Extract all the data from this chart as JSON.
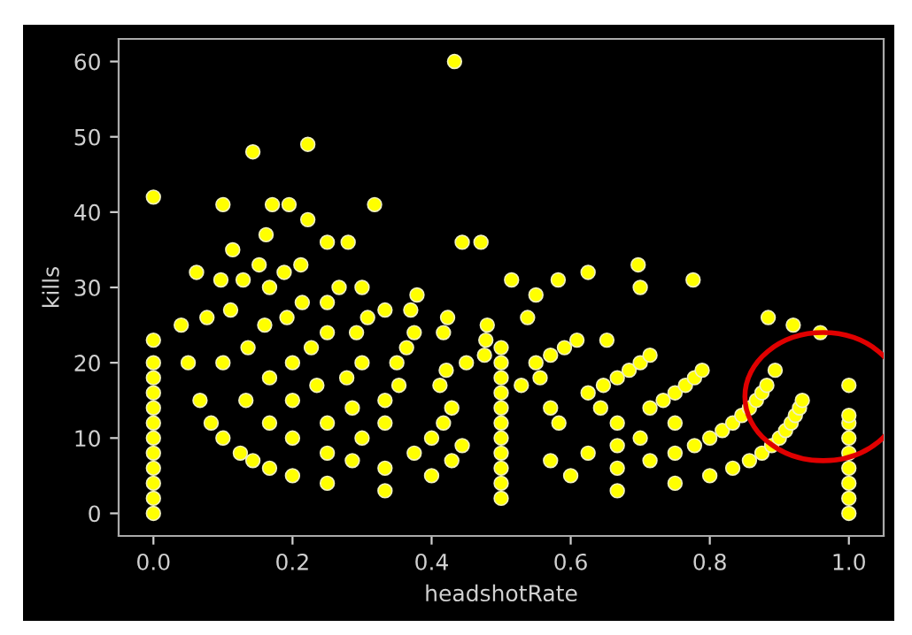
{
  "chart_data": {
    "type": "scatter",
    "xlabel": "headshotRate",
    "ylabel": "kills",
    "xlim": [
      -0.05,
      1.05
    ],
    "ylim": [
      -3,
      63
    ],
    "xticks": [
      {
        "value": 0,
        "label": "0.0"
      },
      0.2,
      0.4,
      0.6,
      0.8,
      {
        "value": 1,
        "label": "1.0"
      }
    ],
    "yticks": [
      0,
      10,
      20,
      30,
      40,
      50,
      60
    ],
    "grid": false,
    "legend": false,
    "marker": "circle",
    "series": [
      {
        "color": "#ffff00",
        "x": [
          0,
          0,
          0,
          0,
          0,
          0,
          0,
          0,
          0,
          0,
          0,
          0,
          0,
          1,
          1,
          1,
          1,
          1,
          1,
          1,
          1,
          1,
          0.5,
          0.5,
          0.5,
          0.5,
          0.5,
          0.5,
          0.5,
          0.5,
          0.5,
          0.5,
          0.5,
          0.333,
          0.25,
          0.2,
          0.167,
          0.143,
          0.125,
          0.1,
          0.083,
          0.067,
          0.05,
          0.04,
          0.667,
          0.4,
          0.333,
          0.286,
          0.25,
          0.2,
          0.167,
          0.133,
          0.1,
          0.077,
          0.75,
          0.6,
          0.429,
          0.375,
          0.3,
          0.25,
          0.2,
          0.167,
          0.136,
          0.111,
          0.097,
          0.8,
          0.667,
          0.571,
          0.444,
          0.4,
          0.333,
          0.286,
          0.235,
          0.2,
          0.16,
          0.129,
          0.833,
          0.714,
          0.625,
          0.417,
          0.333,
          0.278,
          0.227,
          0.192,
          0.167,
          0.152,
          0.857,
          0.75,
          0.667,
          0.429,
          0.353,
          0.3,
          0.25,
          0.214,
          0.188,
          0.875,
          0.778,
          0.7,
          0.583,
          0.412,
          0.35,
          0.292,
          0.25,
          0.212,
          0.889,
          0.8,
          0.667,
          0.571,
          0.421,
          0.364,
          0.308,
          0.267,
          0.9,
          0.818,
          0.75,
          0.643,
          0.529,
          0.45,
          0.375,
          0.333,
          0.3,
          0.909,
          0.833,
          0.714,
          0.625,
          0.556,
          0.476,
          0.417,
          0.37,
          0.917,
          0.846,
          0.733,
          0.647,
          0.55,
          0.478,
          0.423,
          0.379,
          0.923,
          0.857,
          0.75,
          0.667,
          0.571,
          0.48,
          0.929,
          0.867,
          0.765,
          0.684,
          0.591,
          0.933,
          0.875,
          0.778,
          0.7,
          0.609,
          0.538,
          0.882,
          0.789,
          0.714,
          0.652,
          0.143,
          0.222,
          0.1,
          0.171,
          0.195,
          0.318,
          0.433,
          0.444,
          0.471,
          0.222,
          0.162,
          0.114,
          0.062,
          0.25,
          0.28,
          0.515,
          0.55,
          0.582,
          0.625,
          0.697,
          0.7,
          0.776,
          0.884,
          0.92,
          0.959,
          0.894
        ],
        "values": [
          0,
          2,
          4,
          6,
          8,
          10,
          12,
          14,
          16,
          18,
          20,
          23,
          42,
          0,
          2,
          4,
          6,
          8,
          10,
          12,
          13,
          17,
          2,
          4,
          6,
          8,
          10,
          12,
          14,
          16,
          18,
          20,
          22,
          3,
          4,
          5,
          6,
          7,
          8,
          10,
          12,
          15,
          20,
          25,
          3,
          5,
          6,
          7,
          8,
          10,
          12,
          15,
          20,
          26,
          4,
          5,
          7,
          8,
          10,
          12,
          15,
          18,
          22,
          27,
          31,
          5,
          6,
          7,
          9,
          10,
          12,
          14,
          17,
          20,
          25,
          31,
          6,
          7,
          8,
          12,
          15,
          18,
          22,
          26,
          30,
          33,
          7,
          8,
          9,
          14,
          17,
          20,
          24,
          28,
          32,
          8,
          9,
          10,
          12,
          17,
          20,
          24,
          28,
          33,
          9,
          10,
          12,
          14,
          19,
          22,
          26,
          30,
          10,
          11,
          12,
          14,
          17,
          20,
          24,
          27,
          30,
          11,
          12,
          14,
          16,
          18,
          21,
          24,
          27,
          12,
          13,
          15,
          17,
          20,
          23,
          26,
          29,
          13,
          14,
          16,
          18,
          21,
          25,
          14,
          15,
          17,
          19,
          22,
          15,
          16,
          18,
          20,
          23,
          26,
          17,
          19,
          21,
          23,
          48,
          49,
          41,
          41,
          41,
          41,
          60,
          36,
          36,
          39,
          37,
          35,
          32,
          36,
          36,
          31,
          29,
          31,
          32,
          33,
          30,
          31,
          26,
          25,
          24,
          19
        ]
      }
    ]
  }
}
